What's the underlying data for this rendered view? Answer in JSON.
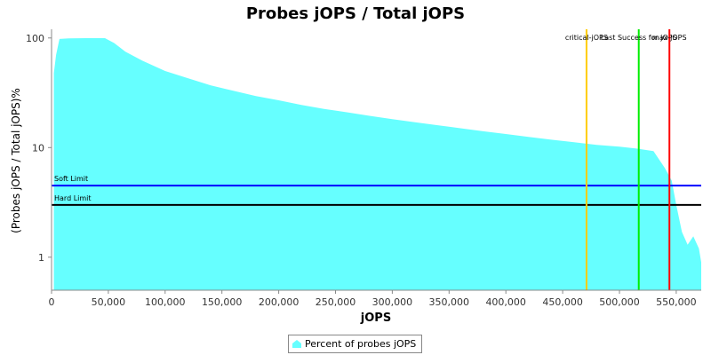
{
  "chart_data": {
    "type": "area",
    "title": "Probes jOPS / Total jOPS",
    "xlabel": "jOPS",
    "ylabel": "(Probes jOPS / Total jOPS)%",
    "yscale": "log",
    "xlim": [
      0,
      572000
    ],
    "ylim": [
      0.5,
      120
    ],
    "x_ticks": [
      0,
      50000,
      100000,
      150000,
      200000,
      250000,
      300000,
      350000,
      400000,
      450000,
      500000,
      550000
    ],
    "x_tick_labels": [
      "0",
      "50,000",
      "100,000",
      "150,000",
      "200,000",
      "250,000",
      "300,000",
      "350,000",
      "400,000",
      "450,000",
      "500,000",
      "550,000"
    ],
    "y_ticks": [
      1,
      10,
      100
    ],
    "y_tick_labels": [
      "1",
      "10",
      "100"
    ],
    "series": [
      {
        "name": "Percent of probes jOPS",
        "color": "#66ffff",
        "x": [
          2000,
          4000,
          7000,
          15000,
          30000,
          47000,
          55000,
          65000,
          80000,
          100000,
          120000,
          140000,
          160000,
          180000,
          200000,
          220000,
          240000,
          260000,
          280000,
          300000,
          320000,
          340000,
          360000,
          380000,
          400000,
          420000,
          440000,
          460000,
          480000,
          500000,
          515000,
          530000,
          540000,
          546000,
          550000,
          555000,
          560000,
          565000,
          570000,
          572000
        ],
        "y": [
          48,
          70,
          98,
          99,
          99.5,
          99.5,
          90,
          75,
          62,
          50,
          43,
          37,
          33,
          29.5,
          27,
          24.5,
          22.5,
          21,
          19.5,
          18.2,
          17,
          16,
          15,
          14.1,
          13.3,
          12.5,
          11.8,
          11.2,
          10.6,
          10.2,
          9.8,
          9.3,
          6.5,
          5.0,
          3.0,
          1.7,
          1.3,
          1.55,
          1.2,
          0.9
        ]
      }
    ],
    "limits": [
      {
        "label": "Soft Limit",
        "value": 4.5,
        "color": "#0000ff"
      },
      {
        "label": "Hard Limit",
        "value": 3.0,
        "color": "#000000"
      }
    ],
    "markers": [
      {
        "label": "critical-jOPS",
        "x": 471000,
        "color": "#ffcc00"
      },
      {
        "label": "Last Success for jOPS",
        "x": 517000,
        "color": "#00ee00"
      },
      {
        "label": "max-jOPS",
        "x": 544000,
        "color": "#ff0000"
      }
    ],
    "legend_position": "bottom"
  }
}
